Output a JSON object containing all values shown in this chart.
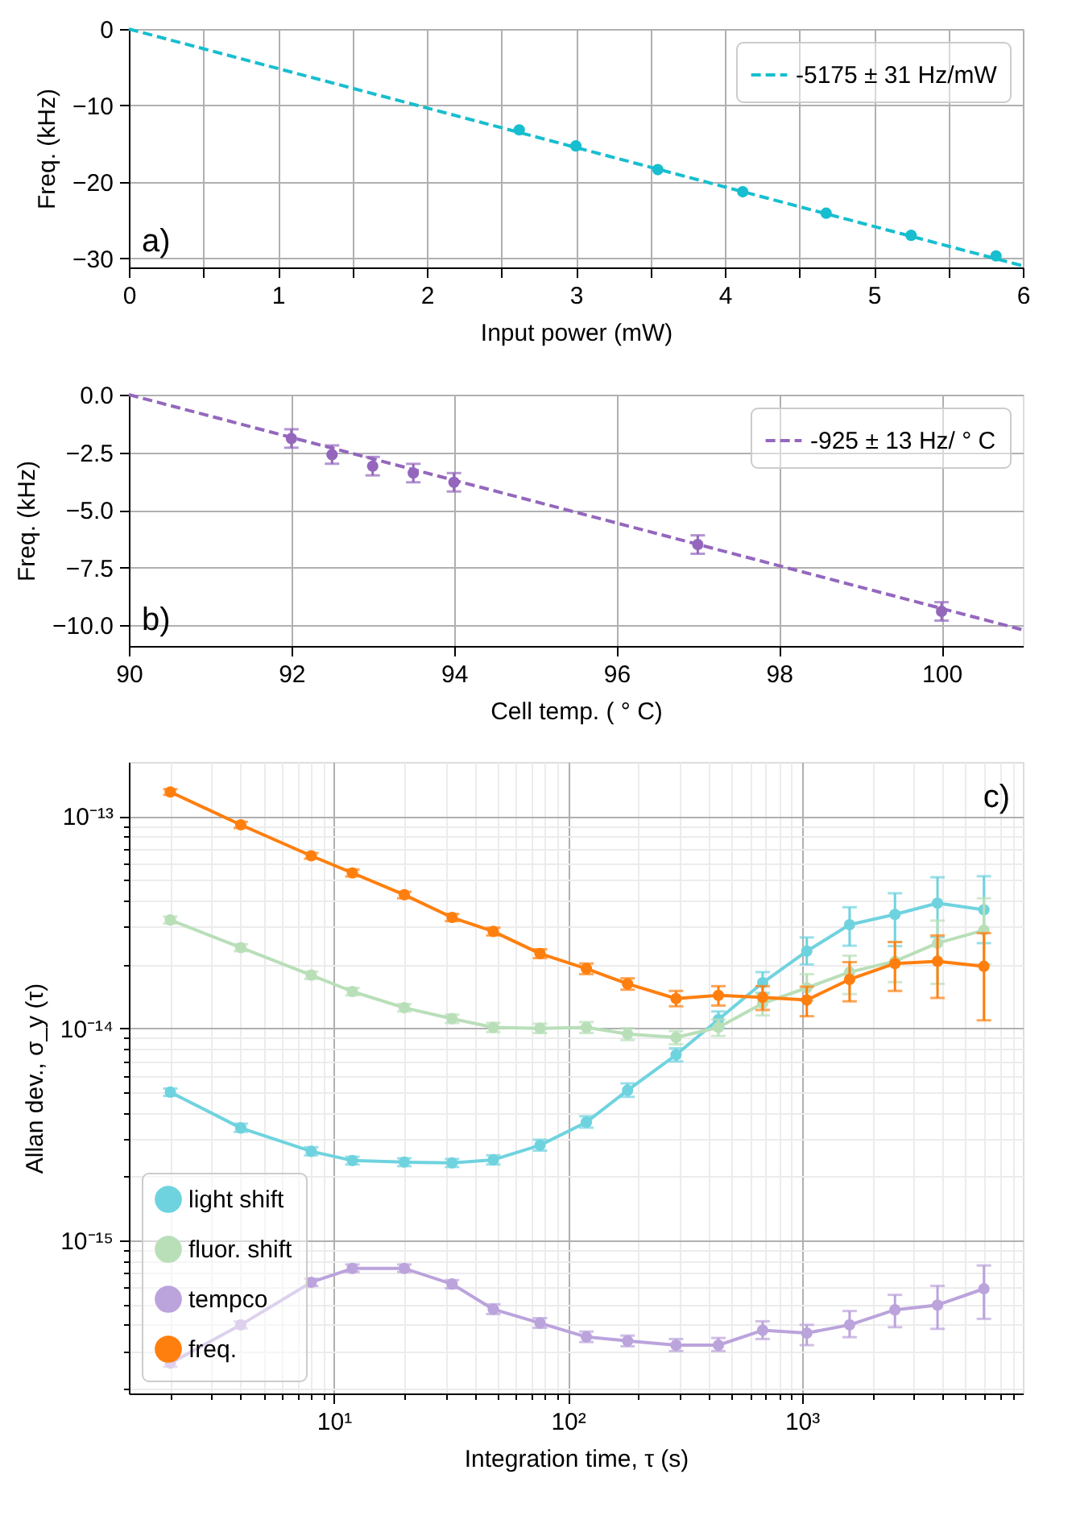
{
  "chart_data": [
    {
      "type": "scatter",
      "xlabel": "Input power (mW)",
      "ylabel": "Freq. (kHz)",
      "annotations": [
        "a)"
      ],
      "xlim": [
        0,
        6
      ],
      "ylim": [
        -31.2,
        0
      ],
      "xticks": [
        0,
        {
          "value": 0.5,
          "label": null
        },
        1,
        {
          "value": 1.5,
          "label": null
        },
        2,
        {
          "value": 2.5,
          "label": null
        },
        3,
        {
          "value": 3.5,
          "label": null
        },
        4,
        {
          "value": 4.5,
          "label": null
        },
        5,
        {
          "value": 5.5,
          "label": null
        },
        6
      ],
      "yticks": [
        -30,
        -20,
        -10,
        0
      ],
      "grid": true,
      "legend": "top right",
      "marker": "circle",
      "series": [
        {
          "type": "scatter",
          "color": "#17becf",
          "x": [
            2.62,
            3.0,
            3.55,
            4.12,
            4.68,
            5.25,
            5.82
          ],
          "values": [
            -13.2,
            -15.3,
            -18.4,
            -21.3,
            -24.1,
            -27.0,
            -29.7
          ]
        },
        {
          "type": "line",
          "name": "-5175 ± 31 Hz/mW",
          "color": "#17becf",
          "marker": "none",
          "line_style": "dashed",
          "x": [
            0,
            6
          ],
          "values": [
            0,
            -31.0
          ]
        }
      ]
    },
    {
      "type": "scatter",
      "xlabel": "Cell temp. ( ° C)",
      "ylabel": "Freq. (kHz)",
      "annotations": [
        "b)"
      ],
      "xlim": [
        90,
        101
      ],
      "ylim": [
        -10.9,
        0
      ],
      "xticks": [
        90,
        92,
        94,
        96,
        98,
        100
      ],
      "yticks": [
        {
          "value": -10,
          "label": "−10.0"
        },
        {
          "value": -7.5,
          "label": "−7.5"
        },
        {
          "value": -5,
          "label": "−5.0"
        },
        {
          "value": -2.5,
          "label": "−2.5"
        },
        {
          "value": 0,
          "label": "0.0"
        }
      ],
      "grid": true,
      "legend": "top right",
      "marker": "circle",
      "series": [
        {
          "type": "scatter",
          "color": "#9467bd",
          "x": [
            92,
            92.5,
            93,
            93.5,
            94,
            97,
            100
          ],
          "values": [
            -1.9,
            -2.6,
            -3.1,
            -3.4,
            -3.8,
            -6.5,
            -9.4
          ],
          "errors": [
            0.4,
            0.4,
            0.4,
            0.4,
            0.4,
            0.4,
            0.4
          ]
        },
        {
          "type": "line",
          "name": "-925 ± 13 Hz/ ° C",
          "color": "#9467bd",
          "marker": "none",
          "line_style": "dashed",
          "x": [
            90,
            101
          ],
          "values": [
            0,
            -10.2
          ]
        }
      ]
    },
    {
      "type": "line",
      "xlabel": "Integration time, τ (s)",
      "ylabel": "Allan dev., σ_y (τ)",
      "annotations": [
        "c)"
      ],
      "log": "xy",
      "xlim": [
        1.33,
        8800
      ],
      "ylim": [
        1.9e-16,
        1.8e-13
      ],
      "xticks": [
        {
          "value": 2,
          "label": null
        },
        {
          "value": 3,
          "label": null
        },
        {
          "value": 4,
          "label": null
        },
        {
          "value": 5,
          "label": null
        },
        {
          "value": 6,
          "label": null
        },
        {
          "value": 7,
          "label": null
        },
        {
          "value": 8,
          "label": null
        },
        {
          "value": 9,
          "label": null
        },
        {
          "value": 10,
          "label": "10¹"
        },
        {
          "value": 20,
          "label": null
        },
        {
          "value": 30,
          "label": null
        },
        {
          "value": 40,
          "label": null
        },
        {
          "value": 50,
          "label": null
        },
        {
          "value": 60,
          "label": null
        },
        {
          "value": 70,
          "label": null
        },
        {
          "value": 80,
          "label": null
        },
        {
          "value": 90,
          "label": null
        },
        {
          "value": 100,
          "label": "10²"
        },
        {
          "value": 200,
          "label": null
        },
        {
          "value": 300,
          "label": null
        },
        {
          "value": 400,
          "label": null
        },
        {
          "value": 500,
          "label": null
        },
        {
          "value": 600,
          "label": null
        },
        {
          "value": 700,
          "label": null
        },
        {
          "value": 800,
          "label": null
        },
        {
          "value": 900,
          "label": null
        },
        {
          "value": 1000,
          "label": "10³"
        },
        {
          "value": 2000,
          "label": null
        },
        {
          "value": 3000,
          "label": null
        },
        {
          "value": 4000,
          "label": null
        },
        {
          "value": 5000,
          "label": null
        },
        {
          "value": 6000,
          "label": null
        },
        {
          "value": 7000,
          "label": null
        },
        {
          "value": 8000,
          "label": null
        }
      ],
      "yticks": [
        {
          "value": 2e-16,
          "label": null
        },
        {
          "value": 3e-16,
          "label": null
        },
        {
          "value": 4e-16,
          "label": null
        },
        {
          "value": 5e-16,
          "label": null
        },
        {
          "value": 6e-16,
          "label": null
        },
        {
          "value": 7e-16,
          "label": null
        },
        {
          "value": 8e-16,
          "label": null
        },
        {
          "value": 9e-16,
          "label": null
        },
        {
          "value": 1e-15,
          "label": "10⁻¹⁵"
        },
        {
          "value": 2e-15,
          "label": null
        },
        {
          "value": 3e-15,
          "label": null
        },
        {
          "value": 4e-15,
          "label": null
        },
        {
          "value": 5e-15,
          "label": null
        },
        {
          "value": 6e-15,
          "label": null
        },
        {
          "value": 7e-15,
          "label": null
        },
        {
          "value": 8e-15,
          "label": null
        },
        {
          "value": 9e-15,
          "label": null
        },
        {
          "value": 1e-14,
          "label": "10⁻¹⁴"
        },
        {
          "value": 2e-14,
          "label": null
        },
        {
          "value": 3e-14,
          "label": null
        },
        {
          "value": 4e-14,
          "label": null
        },
        {
          "value": 5e-14,
          "label": null
        },
        {
          "value": 6e-14,
          "label": null
        },
        {
          "value": 7e-14,
          "label": null
        },
        {
          "value": 8e-14,
          "label": null
        },
        {
          "value": 9e-14,
          "label": null
        },
        {
          "value": 1e-13,
          "label": "10⁻¹³"
        }
      ],
      "grid": true,
      "legend": "bottom left",
      "marker": "circle",
      "x": [
        2,
        4,
        8,
        12,
        20,
        32,
        48,
        76,
        120,
        180,
        290,
        440,
        680,
        1050,
        1600,
        2500,
        3800,
        6000
      ],
      "series": [
        {
          "name": "light shift",
          "color": "#6fd3df",
          "values": [
            5e-15,
            3.39e-15,
            2.63e-15,
            2.38e-15,
            2.34e-15,
            2.32e-15,
            2.4e-15,
            2.81e-15,
            3.61e-15,
            5.1e-15,
            7.5e-15,
            1.1e-14,
            1.64e-14,
            2.31e-14,
            3.08e-14,
            3.44e-14,
            3.89e-14,
            3.62e-14
          ],
          "errors": [
            [
              4.8e-15,
              5.2e-15
            ],
            [
              3.25e-15,
              3.55e-15
            ],
            [
              2.52e-15,
              2.75e-15
            ],
            [
              2.28e-15,
              2.48e-15
            ],
            [
              2.24e-15,
              2.44e-15
            ],
            [
              2.22e-15,
              2.42e-15
            ],
            [
              2.28e-15,
              2.52e-15
            ],
            [
              2.65e-15,
              2.98e-15
            ],
            [
              3.4e-15,
              3.85e-15
            ],
            [
              4.75e-15,
              5.5e-15
            ],
            [
              6.98e-15,
              8.05e-15
            ],
            [
              1e-14,
              1.2e-14
            ],
            [
              1.47e-14,
              1.84e-14
            ],
            [
              2e-14,
              2.68e-14
            ],
            [
              2.45e-14,
              3.72e-14
            ],
            [
              2.44e-14,
              4.33e-14
            ],
            [
              2.69e-14,
              5.15e-14
            ],
            [
              2.52e-14,
              5.21e-14
            ]
          ]
        },
        {
          "name": "fluor. shift",
          "color": "#b9dfb9",
          "values": [
            3.24e-14,
            2.4e-14,
            1.78e-14,
            1.49e-14,
            1.25e-14,
            1.11e-14,
            1.01e-14,
            1e-14,
            1.01e-14,
            9.4e-15,
            9.05e-15,
            1.01e-14,
            1.31e-14,
            1.55e-14,
            1.84e-14,
            2.07e-14,
            2.52e-14,
            2.9e-14
          ],
          "errors": [
            [
              3.12e-14,
              3.36e-14
            ],
            [
              2.31e-14,
              2.49e-14
            ],
            [
              1.71e-14,
              1.85e-14
            ],
            [
              1.43e-14,
              1.55e-14
            ],
            [
              1.2e-14,
              1.3e-14
            ],
            [
              1.06e-14,
              1.16e-14
            ],
            [
              9.6e-15,
              1.06e-14
            ],
            [
              9.5e-15,
              1.05e-14
            ],
            [
              9.5e-15,
              1.07e-14
            ],
            [
              8.8e-15,
              1e-14
            ],
            [
              8.4e-15,
              9.7e-15
            ],
            [
              9.2e-15,
              1.1e-14
            ],
            [
              1.15e-14,
              1.45e-14
            ],
            [
              1.35e-14,
              1.8e-14
            ],
            [
              1.45e-14,
              2.2e-14
            ],
            [
              1.65e-14,
              2.55e-14
            ],
            [
              1.62e-14,
              3.22e-14
            ],
            [
              2e-14,
              4.1e-14
            ]
          ]
        },
        {
          "name": "tempco",
          "color": "#bba3dc",
          "values": [
            2.64e-16,
            4e-16,
            6.35e-16,
            7.38e-16,
            7.38e-16,
            6.23e-16,
            4.74e-16,
            4.08e-16,
            3.51e-16,
            3.36e-16,
            3.21e-16,
            3.21e-16,
            3.77e-16,
            3.66e-16,
            4e-16,
            4.71e-16,
            4.96e-16,
            5.92e-16
          ],
          "errors": [
            [
              2.54e-16,
              2.74e-16
            ],
            [
              3.85e-16,
              4.15e-16
            ],
            [
              6.1e-16,
              6.6e-16
            ],
            [
              7.1e-16,
              7.7e-16
            ],
            [
              7.1e-16,
              7.7e-16
            ],
            [
              5.95e-16,
              6.5e-16
            ],
            [
              4.5e-16,
              5e-16
            ],
            [
              3.87e-16,
              4.3e-16
            ],
            [
              3.32e-16,
              3.72e-16
            ],
            [
              3.17e-16,
              3.56e-16
            ],
            [
              3.01e-16,
              3.43e-16
            ],
            [
              3.01e-16,
              3.47e-16
            ],
            [
              3.43e-16,
              4.16e-16
            ],
            [
              3.21e-16,
              4e-16
            ],
            [
              3.5e-16,
              4.65e-16
            ],
            [
              3.9e-16,
              5.54e-16
            ],
            [
              3.83e-16,
              6.11e-16
            ],
            [
              4.27e-16,
              7.62e-16
            ]
          ]
        },
        {
          "name": "freq.",
          "color": "#ff7f0e",
          "values": [
            1.3e-13,
            9.1e-14,
            6.5e-14,
            5.4e-14,
            4.26e-14,
            3.33e-14,
            2.86e-14,
            2.25e-14,
            1.91e-14,
            1.62e-14,
            1.38e-14,
            1.43e-14,
            1.4e-14,
            1.36e-14,
            1.7e-14,
            2.02e-14,
            2.07e-14,
            1.96e-14
          ],
          "errors": [
            [
              1.26e-13,
              1.34e-13
            ],
            [
              8.8e-14,
              9.4e-14
            ],
            [
              6.3e-14,
              6.7e-14
            ],
            [
              5.2e-14,
              5.6e-14
            ],
            [
              4.1e-14,
              4.4e-14
            ],
            [
              3.2e-14,
              3.46e-14
            ],
            [
              2.74e-14,
              2.98e-14
            ],
            [
              2.14e-14,
              2.36e-14
            ],
            [
              1.8e-14,
              2.02e-14
            ],
            [
              1.52e-14,
              1.72e-14
            ],
            [
              1.27e-14,
              1.5e-14
            ],
            [
              1.28e-14,
              1.58e-14
            ],
            [
              1.22e-14,
              1.58e-14
            ],
            [
              1.14e-14,
              1.57e-14
            ],
            [
              1.34e-14,
              2.05e-14
            ],
            [
              1.5e-14,
              2.55e-14
            ],
            [
              1.39e-14,
              2.74e-14
            ],
            [
              1.09e-14,
              2.81e-14
            ]
          ]
        }
      ]
    }
  ]
}
